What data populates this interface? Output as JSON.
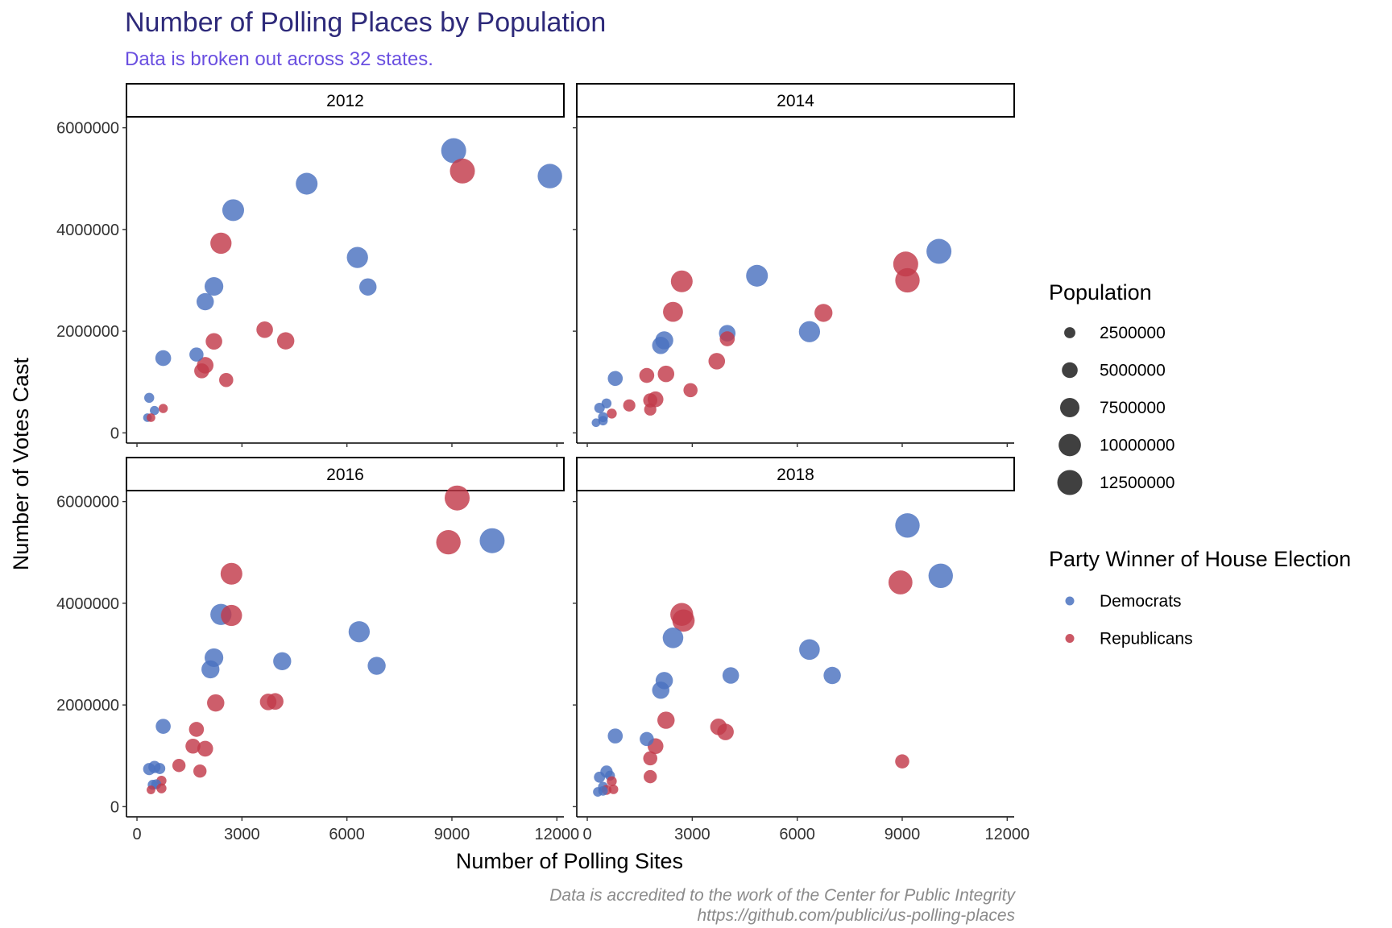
{
  "chart_data": {
    "type": "scatter",
    "title": "Number of Polling Places by Population",
    "subtitle": "Data is broken out across 32 states.",
    "xlabel": "Number of Polling Sites",
    "ylabel": "Number of Votes Cast",
    "xlim": [
      -300,
      12200
    ],
    "ylim": [
      -200000,
      6200000
    ],
    "x_ticks": [
      0,
      3000,
      6000,
      9000,
      12000
    ],
    "x_tick_labels": [
      "0",
      "3000",
      "6000",
      "9000",
      "12000"
    ],
    "y_ticks": [
      0,
      2000000,
      4000000,
      6000000
    ],
    "y_tick_labels": [
      "0",
      "2000000",
      "4000000",
      "6000000"
    ],
    "grid": false,
    "size_legend": {
      "title": "Population",
      "values": [
        2500000,
        5000000,
        7500000,
        10000000,
        12500000
      ],
      "labels": [
        "2500000",
        "5000000",
        "7500000",
        "10000000",
        "12500000"
      ]
    },
    "color_legend": {
      "title": "Party Winner of House Election",
      "entries": [
        {
          "name": "Democrats",
          "color": "#4a72c0"
        },
        {
          "name": "Republicans",
          "color": "#c23b4a"
        }
      ]
    },
    "legend_position": "right",
    "caption": [
      "Data is accredited to the work of the Center for Public Integrity",
      "https://github.com/publici/us-polling-places"
    ],
    "panels": [
      {
        "label": "2012",
        "points": [
          {
            "x": 9050,
            "y": 5550000,
            "party": "Democrats",
            "population": 12500000
          },
          {
            "x": 11800,
            "y": 5050000,
            "party": "Democrats",
            "population": 12000000
          },
          {
            "x": 9300,
            "y": 5150000,
            "party": "Republicans",
            "population": 12500000
          },
          {
            "x": 4850,
            "y": 4900000,
            "party": "Democrats",
            "population": 9500000
          },
          {
            "x": 2750,
            "y": 4380000,
            "party": "Democrats",
            "population": 9500000
          },
          {
            "x": 2400,
            "y": 3730000,
            "party": "Republicans",
            "population": 9000000
          },
          {
            "x": 6300,
            "y": 3450000,
            "party": "Democrats",
            "population": 9000000
          },
          {
            "x": 6600,
            "y": 2870000,
            "party": "Democrats",
            "population": 6000000
          },
          {
            "x": 2200,
            "y": 2880000,
            "party": "Democrats",
            "population": 7000000
          },
          {
            "x": 1950,
            "y": 2580000,
            "party": "Democrats",
            "population": 6000000
          },
          {
            "x": 3650,
            "y": 2030000,
            "party": "Republicans",
            "population": 5500000
          },
          {
            "x": 4250,
            "y": 1810000,
            "party": "Republicans",
            "population": 6000000
          },
          {
            "x": 2200,
            "y": 1800000,
            "party": "Republicans",
            "population": 5500000
          },
          {
            "x": 750,
            "y": 1470000,
            "party": "Democrats",
            "population": 5000000
          },
          {
            "x": 1700,
            "y": 1540000,
            "party": "Democrats",
            "population": 4000000
          },
          {
            "x": 1950,
            "y": 1330000,
            "party": "Republicans",
            "population": 5500000
          },
          {
            "x": 1850,
            "y": 1220000,
            "party": "Republicans",
            "population": 4500000
          },
          {
            "x": 2550,
            "y": 1040000,
            "party": "Republicans",
            "population": 4000000
          },
          {
            "x": 350,
            "y": 690000,
            "party": "Democrats",
            "population": 2000000
          },
          {
            "x": 750,
            "y": 480000,
            "party": "Republicans",
            "population": 1700000
          },
          {
            "x": 500,
            "y": 440000,
            "party": "Democrats",
            "population": 1700000
          },
          {
            "x": 300,
            "y": 300000,
            "party": "Democrats",
            "population": 1500000
          },
          {
            "x": 400,
            "y": 300000,
            "party": "Republicans",
            "population": 1500000
          }
        ]
      },
      {
        "label": "2014",
        "points": [
          {
            "x": 10050,
            "y": 3570000,
            "party": "Democrats",
            "population": 12500000
          },
          {
            "x": 9100,
            "y": 3320000,
            "party": "Republicans",
            "population": 12500000
          },
          {
            "x": 9150,
            "y": 3000000,
            "party": "Republicans",
            "population": 12000000
          },
          {
            "x": 4850,
            "y": 3090000,
            "party": "Democrats",
            "population": 9500000
          },
          {
            "x": 2700,
            "y": 2980000,
            "party": "Republicans",
            "population": 9500000
          },
          {
            "x": 2450,
            "y": 2380000,
            "party": "Republicans",
            "population": 8000000
          },
          {
            "x": 6750,
            "y": 2360000,
            "party": "Republicans",
            "population": 6500000
          },
          {
            "x": 6350,
            "y": 1990000,
            "party": "Democrats",
            "population": 9000000
          },
          {
            "x": 4000,
            "y": 1960000,
            "party": "Democrats",
            "population": 5500000
          },
          {
            "x": 4000,
            "y": 1850000,
            "party": "Republicans",
            "population": 4500000
          },
          {
            "x": 2200,
            "y": 1820000,
            "party": "Democrats",
            "population": 6500000
          },
          {
            "x": 2100,
            "y": 1720000,
            "party": "Democrats",
            "population": 6000000
          },
          {
            "x": 3700,
            "y": 1410000,
            "party": "Republicans",
            "population": 5500000
          },
          {
            "x": 2250,
            "y": 1160000,
            "party": "Republicans",
            "population": 5500000
          },
          {
            "x": 1700,
            "y": 1130000,
            "party": "Republicans",
            "population": 4500000
          },
          {
            "x": 800,
            "y": 1070000,
            "party": "Democrats",
            "population": 4500000
          },
          {
            "x": 2950,
            "y": 840000,
            "party": "Republicans",
            "population": 4000000
          },
          {
            "x": 1950,
            "y": 660000,
            "party": "Republicans",
            "population": 5000000
          },
          {
            "x": 1800,
            "y": 640000,
            "party": "Republicans",
            "population": 4000000
          },
          {
            "x": 1200,
            "y": 540000,
            "party": "Republicans",
            "population": 3000000
          },
          {
            "x": 1800,
            "y": 460000,
            "party": "Republicans",
            "population": 3000000
          },
          {
            "x": 350,
            "y": 490000,
            "party": "Democrats",
            "population": 2200000
          },
          {
            "x": 550,
            "y": 580000,
            "party": "Democrats",
            "population": 2000000
          },
          {
            "x": 700,
            "y": 380000,
            "party": "Republicans",
            "population": 2000000
          },
          {
            "x": 450,
            "y": 310000,
            "party": "Democrats",
            "population": 2000000
          },
          {
            "x": 450,
            "y": 240000,
            "party": "Democrats",
            "population": 1800000
          },
          {
            "x": 250,
            "y": 200000,
            "party": "Democrats",
            "population": 1500000
          }
        ]
      },
      {
        "label": "2016",
        "points": [
          {
            "x": 9150,
            "y": 6070000,
            "party": "Republicans",
            "population": 12500000
          },
          {
            "x": 10150,
            "y": 5230000,
            "party": "Democrats",
            "population": 12500000
          },
          {
            "x": 8900,
            "y": 5200000,
            "party": "Republicans",
            "population": 12000000
          },
          {
            "x": 2700,
            "y": 4580000,
            "party": "Republicans",
            "population": 9500000
          },
          {
            "x": 2400,
            "y": 3780000,
            "party": "Democrats",
            "population": 9000000
          },
          {
            "x": 2700,
            "y": 3760000,
            "party": "Republicans",
            "population": 9000000
          },
          {
            "x": 6350,
            "y": 3440000,
            "party": "Democrats",
            "population": 9000000
          },
          {
            "x": 6850,
            "y": 2770000,
            "party": "Democrats",
            "population": 6500000
          },
          {
            "x": 4150,
            "y": 2860000,
            "party": "Democrats",
            "population": 6500000
          },
          {
            "x": 2200,
            "y": 2930000,
            "party": "Democrats",
            "population": 7000000
          },
          {
            "x": 2100,
            "y": 2700000,
            "party": "Democrats",
            "population": 6500000
          },
          {
            "x": 2250,
            "y": 2040000,
            "party": "Republicans",
            "population": 6000000
          },
          {
            "x": 3750,
            "y": 2060000,
            "party": "Republicans",
            "population": 5500000
          },
          {
            "x": 3950,
            "y": 2070000,
            "party": "Republicans",
            "population": 5500000
          },
          {
            "x": 750,
            "y": 1580000,
            "party": "Democrats",
            "population": 4500000
          },
          {
            "x": 1700,
            "y": 1520000,
            "party": "Republicans",
            "population": 4500000
          },
          {
            "x": 1600,
            "y": 1190000,
            "party": "Republicans",
            "population": 4500000
          },
          {
            "x": 1950,
            "y": 1140000,
            "party": "Republicans",
            "population": 5000000
          },
          {
            "x": 1200,
            "y": 810000,
            "party": "Republicans",
            "population": 3500000
          },
          {
            "x": 1800,
            "y": 700000,
            "party": "Republicans",
            "population": 3500000
          },
          {
            "x": 350,
            "y": 740000,
            "party": "Democrats",
            "population": 3000000
          },
          {
            "x": 500,
            "y": 780000,
            "party": "Democrats",
            "population": 3000000
          },
          {
            "x": 650,
            "y": 750000,
            "party": "Democrats",
            "population": 2500000
          },
          {
            "x": 700,
            "y": 510000,
            "party": "Republicans",
            "population": 2000000
          },
          {
            "x": 450,
            "y": 430000,
            "party": "Democrats",
            "population": 2000000
          },
          {
            "x": 550,
            "y": 440000,
            "party": "Democrats",
            "population": 2000000
          },
          {
            "x": 700,
            "y": 360000,
            "party": "Republicans",
            "population": 2000000
          },
          {
            "x": 400,
            "y": 330000,
            "party": "Republicans",
            "population": 1500000
          }
        ]
      },
      {
        "label": "2018",
        "points": [
          {
            "x": 9150,
            "y": 5530000,
            "party": "Democrats",
            "population": 12000000
          },
          {
            "x": 10100,
            "y": 4540000,
            "party": "Democrats",
            "population": 12000000
          },
          {
            "x": 8950,
            "y": 4410000,
            "party": "Republicans",
            "population": 11500000
          },
          {
            "x": 2700,
            "y": 3780000,
            "party": "Republicans",
            "population": 10500000
          },
          {
            "x": 2750,
            "y": 3660000,
            "party": "Republicans",
            "population": 10000000
          },
          {
            "x": 2450,
            "y": 3320000,
            "party": "Democrats",
            "population": 8500000
          },
          {
            "x": 6350,
            "y": 3090000,
            "party": "Democrats",
            "population": 8500000
          },
          {
            "x": 7000,
            "y": 2580000,
            "party": "Democrats",
            "population": 6000000
          },
          {
            "x": 4100,
            "y": 2580000,
            "party": "Democrats",
            "population": 5500000
          },
          {
            "x": 2200,
            "y": 2480000,
            "party": "Democrats",
            "population": 6000000
          },
          {
            "x": 2100,
            "y": 2290000,
            "party": "Democrats",
            "population": 6000000
          },
          {
            "x": 2250,
            "y": 1700000,
            "party": "Republicans",
            "population": 6000000
          },
          {
            "x": 3750,
            "y": 1570000,
            "party": "Republicans",
            "population": 5500000
          },
          {
            "x": 3950,
            "y": 1470000,
            "party": "Republicans",
            "population": 5500000
          },
          {
            "x": 800,
            "y": 1390000,
            "party": "Democrats",
            "population": 4500000
          },
          {
            "x": 1700,
            "y": 1330000,
            "party": "Democrats",
            "population": 4000000
          },
          {
            "x": 1950,
            "y": 1190000,
            "party": "Republicans",
            "population": 5000000
          },
          {
            "x": 1800,
            "y": 950000,
            "party": "Republicans",
            "population": 4000000
          },
          {
            "x": 9000,
            "y": 890000,
            "party": "Republicans",
            "population": 4000000
          },
          {
            "x": 1800,
            "y": 590000,
            "party": "Republicans",
            "population": 3500000
          },
          {
            "x": 550,
            "y": 690000,
            "party": "Democrats",
            "population": 3000000
          },
          {
            "x": 350,
            "y": 580000,
            "party": "Democrats",
            "population": 2500000
          },
          {
            "x": 650,
            "y": 610000,
            "party": "Democrats",
            "population": 2000000
          },
          {
            "x": 700,
            "y": 500000,
            "party": "Republicans",
            "population": 2000000
          },
          {
            "x": 450,
            "y": 390000,
            "party": "Democrats",
            "population": 2000000
          },
          {
            "x": 550,
            "y": 330000,
            "party": "Republicans",
            "population": 2000000
          },
          {
            "x": 750,
            "y": 340000,
            "party": "Republicans",
            "population": 1800000
          },
          {
            "x": 300,
            "y": 290000,
            "party": "Democrats",
            "population": 1800000
          },
          {
            "x": 450,
            "y": 310000,
            "party": "Democrats",
            "population": 1800000
          }
        ]
      }
    ]
  }
}
